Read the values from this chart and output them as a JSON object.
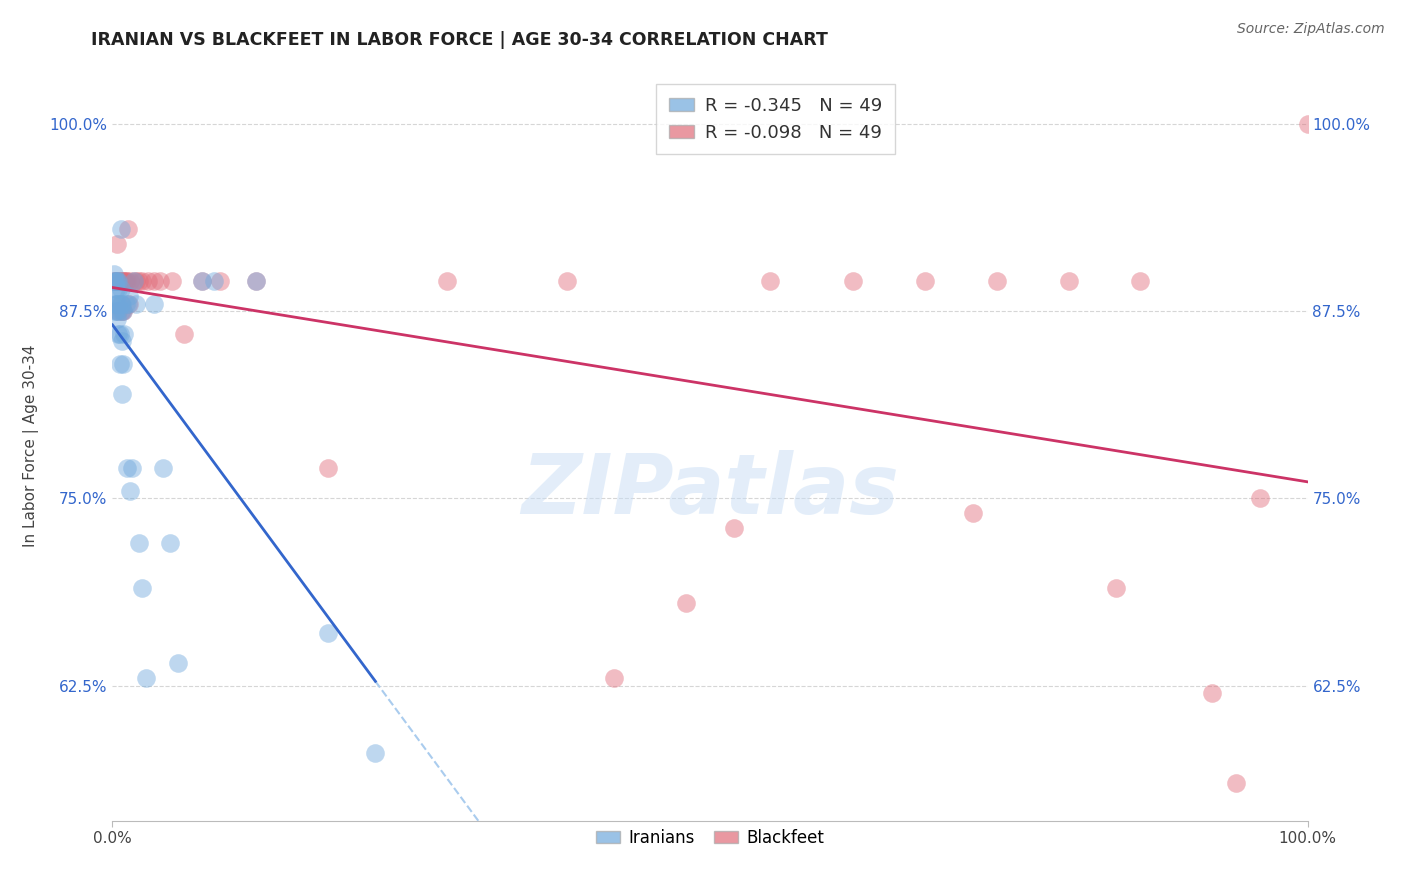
{
  "title": "IRANIAN VS BLACKFEET IN LABOR FORCE | AGE 30-34 CORRELATION CHART",
  "source": "Source: ZipAtlas.com",
  "ylabel": "In Labor Force | Age 30-34",
  "xlim": [
    0.0,
    1.0
  ],
  "ylim": [
    0.535,
    1.035
  ],
  "x_tick_labels": [
    "0.0%",
    "100.0%"
  ],
  "y_ticks": [
    0.625,
    0.75,
    0.875,
    1.0
  ],
  "y_tick_labels": [
    "62.5%",
    "75.0%",
    "87.5%",
    "100.0%"
  ],
  "iranian_R": -0.345,
  "iranian_N": 49,
  "blackfeet_R": -0.098,
  "blackfeet_N": 49,
  "iranian_color": "#6fa8dc",
  "blackfeet_color": "#e06c7a",
  "iranian_line_color": "#3366cc",
  "blackfeet_line_color": "#cc3366",
  "dashed_line_color": "#aaccee",
  "watermark_text": "ZIPatlas",
  "background_color": "#ffffff",
  "grid_color": "#cccccc",
  "iranians_x": [
    0.001,
    0.001,
    0.002,
    0.002,
    0.002,
    0.003,
    0.003,
    0.003,
    0.003,
    0.004,
    0.004,
    0.004,
    0.005,
    0.005,
    0.005,
    0.005,
    0.005,
    0.006,
    0.006,
    0.007,
    0.007,
    0.007,
    0.007,
    0.008,
    0.008,
    0.008,
    0.009,
    0.009,
    0.01,
    0.011,
    0.012,
    0.013,
    0.014,
    0.015,
    0.016,
    0.018,
    0.02,
    0.022,
    0.025,
    0.028,
    0.035,
    0.042,
    0.048,
    0.055,
    0.075,
    0.085,
    0.12,
    0.18,
    0.22
  ],
  "iranians_y": [
    0.895,
    0.9,
    0.88,
    0.875,
    0.895,
    0.875,
    0.88,
    0.89,
    0.895,
    0.87,
    0.88,
    0.895,
    0.86,
    0.875,
    0.88,
    0.89,
    0.895,
    0.84,
    0.86,
    0.875,
    0.88,
    0.89,
    0.93,
    0.82,
    0.855,
    0.88,
    0.84,
    0.875,
    0.86,
    0.88,
    0.77,
    0.88,
    0.885,
    0.755,
    0.77,
    0.895,
    0.88,
    0.72,
    0.69,
    0.63,
    0.88,
    0.77,
    0.72,
    0.64,
    0.895,
    0.895,
    0.895,
    0.66,
    0.58
  ],
  "blackfeet_x": [
    0.001,
    0.002,
    0.003,
    0.004,
    0.005,
    0.005,
    0.006,
    0.007,
    0.007,
    0.008,
    0.008,
    0.009,
    0.01,
    0.01,
    0.011,
    0.012,
    0.013,
    0.014,
    0.015,
    0.018,
    0.02,
    0.022,
    0.025,
    0.03,
    0.035,
    0.04,
    0.05,
    0.06,
    0.075,
    0.09,
    0.12,
    0.18,
    0.28,
    0.38,
    0.48,
    0.55,
    0.62,
    0.68,
    0.74,
    0.8,
    0.86,
    0.92,
    0.96,
    1.0,
    0.42,
    0.52,
    0.72,
    0.84,
    0.94
  ],
  "blackfeet_y": [
    0.895,
    0.895,
    0.895,
    0.92,
    0.875,
    0.895,
    0.895,
    0.88,
    0.895,
    0.875,
    0.895,
    0.875,
    0.895,
    0.895,
    0.895,
    0.895,
    0.93,
    0.88,
    0.895,
    0.895,
    0.895,
    0.895,
    0.895,
    0.895,
    0.895,
    0.895,
    0.895,
    0.86,
    0.895,
    0.895,
    0.895,
    0.77,
    0.895,
    0.895,
    0.68,
    0.895,
    0.895,
    0.895,
    0.895,
    0.895,
    0.895,
    0.62,
    0.75,
    1.0,
    0.63,
    0.73,
    0.74,
    0.69,
    0.56
  ]
}
